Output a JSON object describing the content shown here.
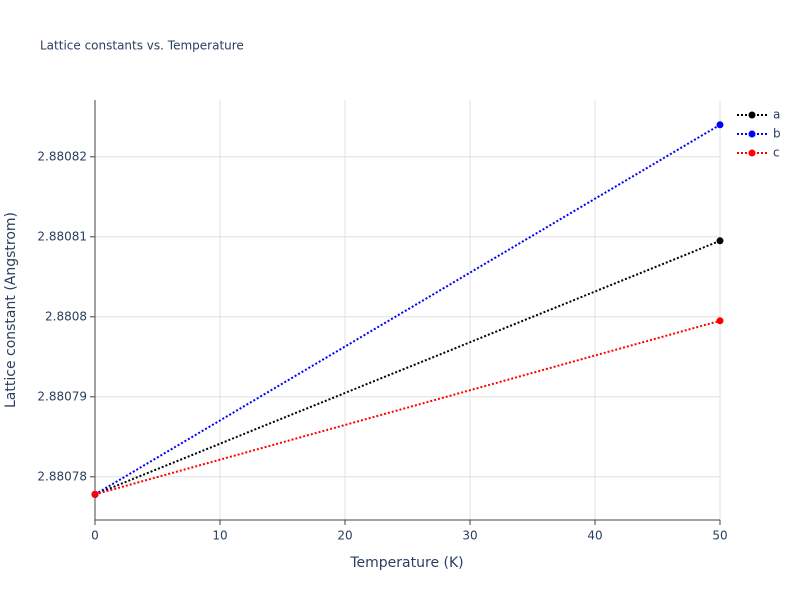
{
  "chart_data": {
    "type": "line",
    "title": "Lattice constants vs. Temperature",
    "x_label": "Temperature (K)",
    "y_label": "Lattice constant (Angstrom)",
    "x": [
      0,
      50
    ],
    "series": [
      {
        "name": "a",
        "color": "#000000",
        "values": [
          2.8807778,
          2.8808095
        ]
      },
      {
        "name": "b",
        "color": "#0000ff",
        "values": [
          2.8807778,
          2.880824
        ]
      },
      {
        "name": "c",
        "color": "#ff0000",
        "values": [
          2.8807778,
          2.8807995
        ]
      }
    ],
    "xlim": [
      0,
      50
    ],
    "xticks": [
      0,
      10,
      20,
      30,
      40,
      50
    ],
    "ylim": [
      2.8807746,
      2.8808271
    ],
    "yticks": [
      2.88078,
      2.88079,
      2.8808,
      2.88081,
      2.88082
    ],
    "grid": true,
    "legend": "top-right"
  }
}
